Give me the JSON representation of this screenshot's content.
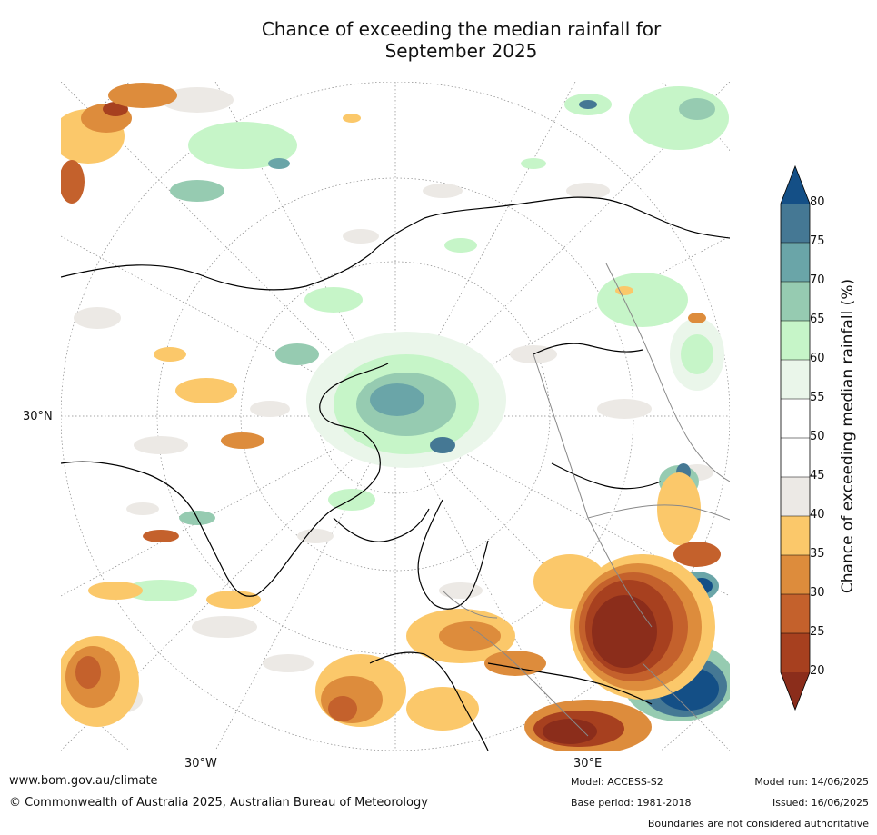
{
  "title_line1": "Chance of exceeding the median rainfall for",
  "title_line2": "September 2025",
  "lat_label": "30°N",
  "lon_labels": {
    "west": "30°W",
    "east": "30°E"
  },
  "colorbar": {
    "title": "Chance of exceeding median rainfall (%)",
    "ticks": [
      "20",
      "25",
      "30",
      "35",
      "40",
      "45",
      "50",
      "55",
      "60",
      "65",
      "70",
      "75",
      "80"
    ],
    "colors": {
      "below_20": "#8b2d1b",
      "20_25": "#a7401f",
      "25_30": "#c4612c",
      "30_35": "#dd8c3c",
      "35_40": "#fbc86a",
      "40_45": "#ece9e5",
      "45_50": "#ffffff",
      "50_55": "#ffffff",
      "55_60": "#eaf6ea",
      "60_65": "#c6f5c8",
      "65_70": "#96cbb1",
      "70_75": "#6aa5a8",
      "75_80": "#457894",
      "above_80": "#144f86"
    }
  },
  "footer": {
    "url": "www.bom.gov.au/climate",
    "copyright": "© Commonwealth of Australia 2025, Australian Bureau of Meteorology",
    "model": "Model: ACCESS-S2",
    "base_period": "Base period: 1981-2018",
    "model_run": "Model run: 14/06/2025",
    "issued": "Issued: 16/06/2025",
    "disclaimer": "Boundaries are not considered authoritative"
  }
}
